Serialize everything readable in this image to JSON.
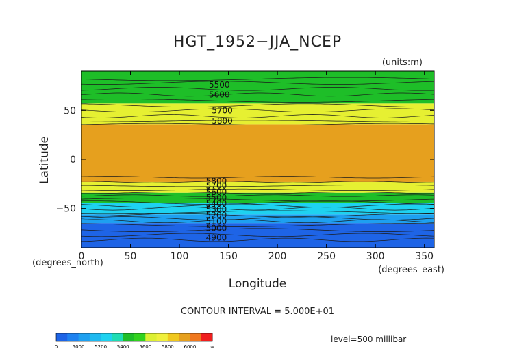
{
  "chart_data": {
    "type": "heatmap",
    "title": "HGT_1952−JJA_NCEP",
    "units": "(units:m)",
    "xlabel": "Longitude",
    "ylabel": "Latitude",
    "x_unit": "(degrees_east)",
    "y_unit": "(degrees_north)",
    "xlim": [
      0,
      360
    ],
    "ylim": [
      -90,
      90
    ],
    "x_ticks": [
      "0",
      "50",
      "100",
      "150",
      "200",
      "250",
      "300",
      "350"
    ],
    "y_ticks": [
      "50",
      "0",
      "−50"
    ],
    "x_tick_values": [
      0,
      50,
      100,
      150,
      200,
      250,
      300,
      350
    ],
    "y_tick_values": [
      50,
      0,
      -50
    ],
    "contour_interval": "CONTOUR INTERVAL = 5.000E+01",
    "level": "level=500 millibar",
    "contour_labels": [
      {
        "text": "5500",
        "lon": 130,
        "lat": 76
      },
      {
        "text": "5600",
        "lon": 130,
        "lat": 66
      },
      {
        "text": "5700",
        "lon": 133,
        "lat": 50
      },
      {
        "text": "5800",
        "lon": 133,
        "lat": 39
      },
      {
        "text": "5800",
        "lon": 127,
        "lat": -22
      },
      {
        "text": "5700",
        "lon": 127,
        "lat": -27
      },
      {
        "text": "5600",
        "lon": 127,
        "lat": -33
      },
      {
        "text": "5500",
        "lon": 127,
        "lat": -39
      },
      {
        "text": "5400",
        "lon": 127,
        "lat": -45
      },
      {
        "text": "5300",
        "lon": 127,
        "lat": -51
      },
      {
        "text": "5200",
        "lon": 127,
        "lat": -57
      },
      {
        "text": "5100",
        "lon": 127,
        "lat": -63
      },
      {
        "text": "5000",
        "lon": 127,
        "lat": -70
      },
      {
        "text": "4900",
        "lon": 127,
        "lat": -80
      }
    ],
    "bands": [
      {
        "name": "below 5000",
        "lat_from": -90,
        "lat_to": -65,
        "color": "#1e64e6"
      },
      {
        "name": "5000-5200",
        "lat_from": -65,
        "lat_to": -56,
        "color": "#1ea0f0"
      },
      {
        "name": "5200-5400",
        "lat_from": -56,
        "lat_to": -44,
        "color": "#1ed2f0"
      },
      {
        "name": "5400-5600",
        "lat_from": -44,
        "lat_to": -34,
        "color": "#1ebe28"
      },
      {
        "name": "5600-5800",
        "lat_from": -34,
        "lat_to": -23,
        "color": "#e6f032"
      },
      {
        "name": "5800-6000",
        "lat_from": -23,
        "lat_to": 36,
        "color": "#e6a01e"
      },
      {
        "name": "5600-5800",
        "lat_from": 36,
        "lat_to": 57,
        "color": "#e6f032"
      },
      {
        "name": "5400-5600",
        "lat_from": 57,
        "lat_to": 90,
        "color": "#1ebe28"
      }
    ],
    "colorbar": {
      "labels": [
        "0",
        "5000",
        "5200",
        "5400",
        "5600",
        "5800",
        "6000",
        "∞"
      ],
      "colors": [
        "#1e64e6",
        "#1e82f0",
        "#1ea0f0",
        "#1eb9f0",
        "#1ed2f0",
        "#1edcb4",
        "#1ebe28",
        "#32d21e",
        "#dcf032",
        "#f0f03c",
        "#f0c81e",
        "#e6a01e",
        "#f0781e",
        "#f01e1e"
      ]
    }
  }
}
